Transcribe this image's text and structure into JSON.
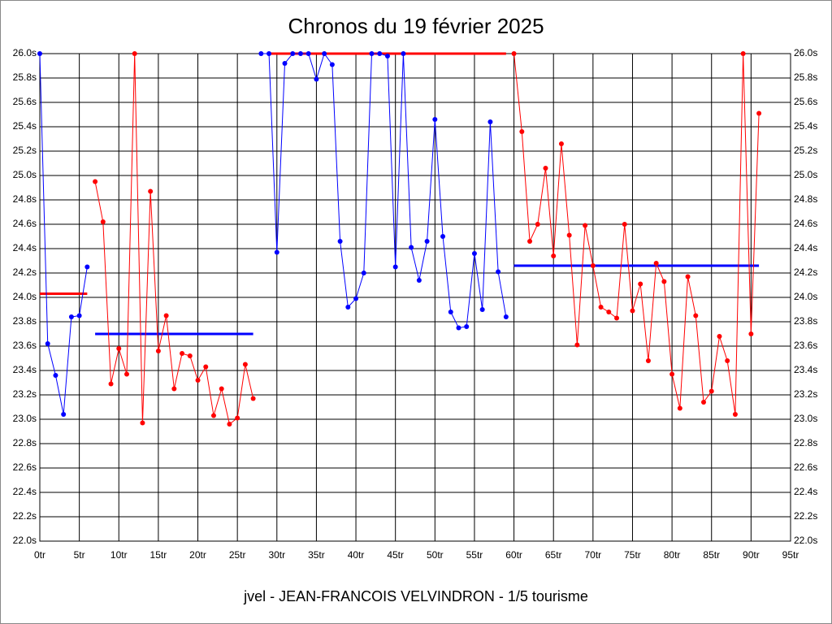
{
  "chart_data": {
    "type": "line",
    "title": "Chronos du 19 février 2025",
    "footer": "jvel - JEAN-FRANCOIS VELVINDRON - 1/5 tourisme",
    "x": [
      0,
      1,
      2,
      3,
      4,
      5,
      6,
      7,
      8,
      9,
      10,
      11,
      12,
      13,
      14,
      15,
      16,
      17,
      18,
      19,
      20,
      21,
      22,
      23,
      24,
      25,
      26,
      27,
      28,
      29,
      30,
      31,
      32,
      33,
      34,
      35,
      36,
      37,
      38,
      39,
      40,
      41,
      42,
      43,
      44,
      45,
      46,
      47,
      48,
      49,
      50,
      51,
      52,
      53,
      54,
      55,
      56,
      57,
      58,
      59,
      60,
      61,
      62,
      63,
      64,
      65,
      66,
      67,
      68,
      69,
      70,
      71,
      72,
      73,
      74,
      75,
      76,
      77,
      78,
      79,
      80,
      81,
      82,
      83,
      84,
      85,
      86,
      87,
      88,
      89,
      90,
      91
    ],
    "series": [
      {
        "color": "#0000ff",
        "values": [
          26.0,
          23.62,
          23.36,
          23.04,
          23.84,
          23.85,
          24.25,
          null,
          null,
          null,
          null,
          null,
          null,
          null,
          null,
          null,
          null,
          null,
          null,
          null,
          null,
          null,
          null,
          null,
          null,
          null,
          null,
          null,
          26.0,
          26.0,
          24.37,
          25.92,
          26.0,
          26.0,
          26.0,
          25.79,
          26.0,
          25.91,
          24.46,
          23.92,
          23.99,
          24.2,
          26.0,
          26.0,
          25.98,
          24.25,
          26.0,
          24.41,
          24.14,
          24.46,
          25.46,
          24.5,
          23.88,
          23.75,
          23.76,
          24.36,
          23.9,
          25.44,
          24.21,
          23.84,
          null,
          null,
          null,
          null,
          null,
          null,
          null,
          null,
          null,
          null,
          null,
          null,
          null,
          null,
          null,
          null,
          null,
          null,
          null,
          null,
          null,
          null,
          null,
          null,
          null,
          null,
          null,
          null,
          null,
          null,
          null,
          null
        ]
      },
      {
        "color": "#ff0000",
        "values": [
          null,
          null,
          null,
          null,
          null,
          null,
          null,
          24.95,
          24.62,
          23.29,
          23.58,
          23.37,
          26.0,
          22.97,
          24.87,
          23.56,
          23.85,
          23.25,
          23.54,
          23.52,
          23.32,
          23.43,
          23.03,
          23.25,
          22.96,
          23.01,
          23.45,
          23.17,
          null,
          null,
          null,
          null,
          null,
          null,
          null,
          null,
          null,
          null,
          null,
          null,
          null,
          null,
          null,
          null,
          null,
          null,
          null,
          null,
          null,
          null,
          null,
          null,
          null,
          null,
          null,
          null,
          null,
          null,
          null,
          null,
          26.0,
          25.36,
          24.46,
          24.6,
          25.06,
          24.34,
          25.26,
          24.51,
          23.61,
          24.59,
          24.26,
          23.92,
          23.88,
          23.83,
          24.6,
          23.89,
          24.11,
          23.48,
          24.28,
          24.13,
          23.37,
          23.09,
          24.17,
          23.85,
          23.14,
          23.23,
          23.68,
          23.48,
          23.04,
          26.0,
          23.7,
          25.51
        ]
      }
    ],
    "averages": [
      {
        "color": "#ff0000",
        "x": [
          0,
          6
        ],
        "value": 24.03
      },
      {
        "color": "#0000ff",
        "x": [
          7,
          27
        ],
        "value": 23.7
      },
      {
        "color": "#ff0000",
        "x": [
          29,
          59
        ],
        "value": 26.0
      },
      {
        "color": "#0000ff",
        "x": [
          60,
          91
        ],
        "value": 24.26
      }
    ],
    "xlim": [
      0,
      95
    ],
    "xticks": [
      {
        "value": 0,
        "label": "0tr"
      },
      {
        "value": 5,
        "label": "5tr"
      },
      {
        "value": 10,
        "label": "10tr"
      },
      {
        "value": 15,
        "label": "15tr"
      },
      {
        "value": 20,
        "label": "20tr"
      },
      {
        "value": 25,
        "label": "25tr"
      },
      {
        "value": 30,
        "label": "30tr"
      },
      {
        "value": 35,
        "label": "35tr"
      },
      {
        "value": 40,
        "label": "40tr"
      },
      {
        "value": 45,
        "label": "45tr"
      },
      {
        "value": 50,
        "label": "50tr"
      },
      {
        "value": 55,
        "label": "55tr"
      },
      {
        "value": 60,
        "label": "60tr"
      },
      {
        "value": 65,
        "label": "65tr"
      },
      {
        "value": 70,
        "label": "70tr"
      },
      {
        "value": 75,
        "label": "75tr"
      },
      {
        "value": 80,
        "label": "80tr"
      },
      {
        "value": 85,
        "label": "85tr"
      },
      {
        "value": 90,
        "label": "90tr"
      },
      {
        "value": 95,
        "label": "95tr"
      }
    ],
    "ylim": [
      22.0,
      26.0
    ],
    "yticks": [
      {
        "value": 22.0,
        "label": "22.0s"
      },
      {
        "value": 22.2,
        "label": "22.2s"
      },
      {
        "value": 22.4,
        "label": "22.4s"
      },
      {
        "value": 22.6,
        "label": "22.6s"
      },
      {
        "value": 22.8,
        "label": "22.8s"
      },
      {
        "value": 23.0,
        "label": "23.0s"
      },
      {
        "value": 23.2,
        "label": "23.2s"
      },
      {
        "value": 23.4,
        "label": "23.4s"
      },
      {
        "value": 23.6,
        "label": "23.6s"
      },
      {
        "value": 23.8,
        "label": "23.8s"
      },
      {
        "value": 24.0,
        "label": "24.0s"
      },
      {
        "value": 24.2,
        "label": "24.2s"
      },
      {
        "value": 24.4,
        "label": "24.4s"
      },
      {
        "value": 24.6,
        "label": "24.6s"
      },
      {
        "value": 24.8,
        "label": "24.8s"
      },
      {
        "value": 25.0,
        "label": "25.0s"
      },
      {
        "value": 25.2,
        "label": "25.2s"
      },
      {
        "value": 25.4,
        "label": "25.4s"
      },
      {
        "value": 25.6,
        "label": "25.6s"
      },
      {
        "value": 25.8,
        "label": "25.8s"
      },
      {
        "value": 26.0,
        "label": "26.0s"
      }
    ],
    "grid": true
  }
}
